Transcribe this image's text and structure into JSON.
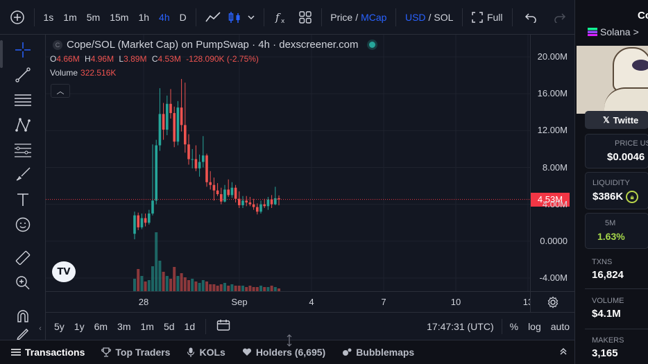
{
  "toolbar": {
    "add_label": "+",
    "intervals": [
      "1s",
      "1m",
      "5m",
      "15m",
      "1h",
      "4h",
      "D"
    ],
    "active_interval": "4h",
    "price_label": "Price",
    "mcap_label": "MCap",
    "usd_label": "USD",
    "sol_label": "SOL",
    "full_label": "Full"
  },
  "chart": {
    "title": "Cope/SOL (Market Cap) on PumpSwap · 4h · dexscreener.com",
    "ohlc": {
      "o_key": "O",
      "o": "4.66M",
      "h_key": "H",
      "h": "4.96M",
      "l_key": "L",
      "l": "3.89M",
      "c_key": "C",
      "c": "4.53M",
      "change": "-128.090K (-2.75%)"
    },
    "volume_label": "Volume",
    "volume_value": "322.516K",
    "current_price": "4.53M",
    "logo_text": "TV"
  },
  "chart_data": {
    "type": "candlestick",
    "ylim": [
      -4.0,
      20.0
    ],
    "y_ticks": [
      "20.00M",
      "16.00M",
      "12.00M",
      "8.00M",
      "4.00M",
      "0.0000",
      "-4.00M"
    ],
    "x_ticks": [
      "28",
      "Sep",
      "4",
      "7",
      "10",
      "13"
    ],
    "current_price_line": 4.53,
    "candles": [
      {
        "o": 0.8,
        "h": 3.2,
        "l": 0.2,
        "c": 2.8
      },
      {
        "o": 2.8,
        "h": 3.1,
        "l": 1.2,
        "c": 1.5
      },
      {
        "o": 1.5,
        "h": 3.0,
        "l": 1.3,
        "c": 2.5
      },
      {
        "o": 2.5,
        "h": 3.0,
        "l": 1.6,
        "c": 2.0
      },
      {
        "o": 2.0,
        "h": 3.4,
        "l": 1.8,
        "c": 3.0
      },
      {
        "o": 3.0,
        "h": 10.5,
        "l": 2.8,
        "c": 4.4
      },
      {
        "o": 4.4,
        "h": 11.0,
        "l": 4.0,
        "c": 10.4
      },
      {
        "o": 10.4,
        "h": 16.6,
        "l": 9.8,
        "c": 13.8
      },
      {
        "o": 13.8,
        "h": 15.0,
        "l": 11.0,
        "c": 12.1
      },
      {
        "o": 12.1,
        "h": 15.8,
        "l": 11.5,
        "c": 14.9
      },
      {
        "o": 14.9,
        "h": 16.5,
        "l": 13.3,
        "c": 13.9
      },
      {
        "o": 13.9,
        "h": 14.6,
        "l": 10.2,
        "c": 10.8
      },
      {
        "o": 10.8,
        "h": 15.2,
        "l": 10.4,
        "c": 14.5
      },
      {
        "o": 14.5,
        "h": 17.6,
        "l": 11.9,
        "c": 12.6
      },
      {
        "o": 12.6,
        "h": 17.2,
        "l": 9.6,
        "c": 10.5
      },
      {
        "o": 10.5,
        "h": 11.6,
        "l": 8.3,
        "c": 8.9
      },
      {
        "o": 8.9,
        "h": 10.0,
        "l": 7.9,
        "c": 8.9
      },
      {
        "o": 8.9,
        "h": 10.4,
        "l": 7.6,
        "c": 7.9
      },
      {
        "o": 7.9,
        "h": 9.4,
        "l": 7.0,
        "c": 8.6
      },
      {
        "o": 8.6,
        "h": 11.4,
        "l": 8.0,
        "c": 9.3
      },
      {
        "o": 9.3,
        "h": 9.5,
        "l": 5.9,
        "c": 6.4
      },
      {
        "o": 6.4,
        "h": 7.6,
        "l": 5.6,
        "c": 6.1
      },
      {
        "o": 6.1,
        "h": 6.9,
        "l": 4.4,
        "c": 5.5
      },
      {
        "o": 5.5,
        "h": 6.3,
        "l": 4.9,
        "c": 5.1
      },
      {
        "o": 5.1,
        "h": 5.8,
        "l": 4.0,
        "c": 4.3
      },
      {
        "o": 4.3,
        "h": 6.1,
        "l": 4.2,
        "c": 5.6
      },
      {
        "o": 5.6,
        "h": 6.7,
        "l": 4.8,
        "c": 5.0
      },
      {
        "o": 5.0,
        "h": 6.4,
        "l": 4.7,
        "c": 5.8
      },
      {
        "o": 5.8,
        "h": 6.1,
        "l": 4.2,
        "c": 4.6
      },
      {
        "o": 4.6,
        "h": 5.4,
        "l": 3.6,
        "c": 3.9
      },
      {
        "o": 3.9,
        "h": 4.9,
        "l": 3.6,
        "c": 4.4
      },
      {
        "o": 4.4,
        "h": 4.9,
        "l": 3.8,
        "c": 4.2
      },
      {
        "o": 4.2,
        "h": 4.8,
        "l": 3.8,
        "c": 4.0
      },
      {
        "o": 4.0,
        "h": 4.6,
        "l": 3.4,
        "c": 3.7
      },
      {
        "o": 3.7,
        "h": 4.1,
        "l": 2.9,
        "c": 3.2
      },
      {
        "o": 3.2,
        "h": 4.4,
        "l": 3.0,
        "c": 4.0
      },
      {
        "o": 4.0,
        "h": 4.6,
        "l": 3.6,
        "c": 3.8
      },
      {
        "o": 3.8,
        "h": 4.8,
        "l": 3.4,
        "c": 4.5
      },
      {
        "o": 4.5,
        "h": 5.0,
        "l": 3.6,
        "c": 4.0
      },
      {
        "o": 4.0,
        "h": 5.9,
        "l": 3.9,
        "c": 4.66
      },
      {
        "o": 4.66,
        "h": 4.96,
        "l": 3.89,
        "c": 4.53
      }
    ],
    "volumes": [
      0.18,
      0.32,
      0.22,
      0.14,
      0.16,
      0.36,
      0.85,
      0.44,
      0.28,
      0.22,
      0.18,
      0.35,
      0.22,
      0.26,
      0.2,
      0.16,
      0.18,
      0.14,
      0.12,
      0.16,
      0.14,
      0.1,
      0.1,
      0.08,
      0.1,
      0.12,
      0.08,
      0.1,
      0.08,
      0.08,
      0.08,
      0.06,
      0.08,
      0.06,
      0.06,
      0.08,
      0.06,
      0.06,
      0.08,
      0.06,
      0.04
    ]
  },
  "timeframe": {
    "ranges": [
      "5y",
      "1y",
      "6m",
      "3m",
      "1m",
      "5d",
      "1d"
    ],
    "clock": "17:47:31 (UTC)",
    "percent_label": "%",
    "log_label": "log",
    "auto_label": "auto"
  },
  "tabs": [
    {
      "label": "Transactions",
      "icon": "list-icon"
    },
    {
      "label": "Top Traders",
      "icon": "trophy-icon"
    },
    {
      "label": "KOLs",
      "icon": "mic-icon"
    },
    {
      "label": "Holders (6,695)",
      "icon": "heart-icon"
    },
    {
      "label": "Bubblemaps",
      "icon": "bubbles-icon"
    }
  ],
  "right_panel": {
    "name": "Co",
    "chain": "Solana",
    "chain_arrow": ">",
    "twitter_label": "Twitte",
    "price_usd_label": "PRICE US",
    "price_usd": "$0.0046",
    "liquidity_label": "LIQUIDITY",
    "liquidity": "$386K",
    "change_5m_label": "5M",
    "change_5m": "1.63%",
    "txns_label": "TXNS",
    "txns": "16,824",
    "volume_label": "VOLUME",
    "volume": "$4.1M",
    "makers_label": "MAKERS",
    "makers": "3,165"
  },
  "colors": {
    "up": "#26a69a",
    "down": "#ef5350",
    "accent": "#2962ff",
    "price_tag": "#f23645",
    "positive_change": "#a6d84a"
  }
}
